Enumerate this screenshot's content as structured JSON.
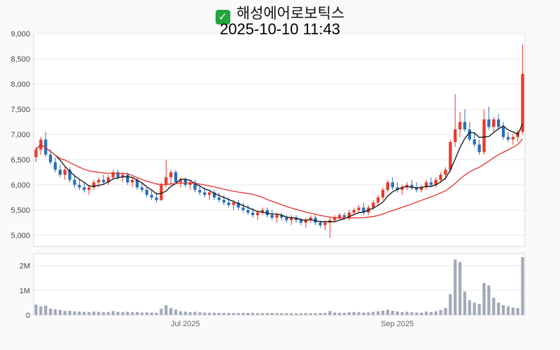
{
  "header": {
    "check_icon": "✓",
    "title": "해성에어로보틱스",
    "subtitle": "2025-10-10 11:43"
  },
  "colors": {
    "up": "#e8392c",
    "down": "#2b6fb8",
    "ma_fast": "#111111",
    "ma_slow": "#e0332c",
    "volume": "#a2aab8",
    "grid": "#e8e8e8",
    "border": "#d9d9d9",
    "axis_text": "#444444",
    "axis_muted": "#666666",
    "plot_bg": "#ffffff",
    "page_bg": "#fafafa",
    "check_bg": "#21a63e",
    "check_fg": "#ffffff"
  },
  "chart_data": {
    "type": "candlestick",
    "title": "해성에어로보틱스",
    "subtitle": "2025-10-10 11:43",
    "legend_position": "none",
    "grid": "horizontal",
    "y_axis": {
      "top_value": 9000,
      "bottom_value": 4780,
      "ticks": [
        {
          "v": 9000,
          "label": "9,000"
        },
        {
          "v": 8500,
          "label": "8,500"
        },
        {
          "v": 8000,
          "label": "8,000"
        },
        {
          "v": 7500,
          "label": "7,500"
        },
        {
          "v": 7000,
          "label": "7,000"
        },
        {
          "v": 6500,
          "label": "6,500"
        },
        {
          "v": 6000,
          "label": "6,000"
        },
        {
          "v": 5500,
          "label": "5,500"
        },
        {
          "v": 5000,
          "label": "5,000"
        }
      ]
    },
    "volume_axis": {
      "max": 2500000,
      "ticks": [
        {
          "v": 2000000,
          "label": "2M"
        },
        {
          "v": 1000000,
          "label": "1M"
        },
        {
          "v": 0,
          "label": "0"
        }
      ]
    },
    "x_axis": {
      "labels": [
        {
          "text": "Jul 2025",
          "date": "07-01"
        },
        {
          "text": "Sep 2025",
          "date": "09-01"
        }
      ]
    },
    "overlays": [
      {
        "name": "ma-fast",
        "window": 5,
        "color": "#111111"
      },
      {
        "name": "ma-slow",
        "window": 20,
        "color": "#e0332c"
      }
    ],
    "ohlc_columns": [
      "date",
      "open",
      "high",
      "low",
      "close",
      "volume"
    ],
    "ohlc": [
      [
        "05-19",
        6550,
        6750,
        6450,
        6700,
        420000
      ],
      [
        "05-20",
        6700,
        6950,
        6600,
        6900,
        350000
      ],
      [
        "05-21",
        6900,
        7050,
        6550,
        6600,
        380000
      ],
      [
        "05-22",
        6600,
        6700,
        6400,
        6450,
        260000
      ],
      [
        "05-23",
        6450,
        6550,
        6250,
        6300,
        230000
      ],
      [
        "05-26",
        6300,
        6400,
        6150,
        6200,
        200000
      ],
      [
        "05-27",
        6200,
        6350,
        6100,
        6300,
        160000
      ],
      [
        "05-28",
        6300,
        6350,
        6050,
        6100,
        170000
      ],
      [
        "05-29",
        6100,
        6200,
        5950,
        6000,
        150000
      ],
      [
        "05-30",
        6000,
        6100,
        5900,
        5950,
        140000
      ],
      [
        "06-02",
        5950,
        6050,
        5850,
        5900,
        130000
      ],
      [
        "06-03",
        5900,
        6000,
        5800,
        5950,
        120000
      ],
      [
        "06-04",
        5950,
        6100,
        5900,
        6050,
        140000
      ],
      [
        "06-05",
        6050,
        6150,
        5950,
        6100,
        130000
      ],
      [
        "06-06",
        6100,
        6200,
        6000,
        6050,
        110000
      ],
      [
        "06-09",
        6050,
        6200,
        6000,
        6150,
        120000
      ],
      [
        "06-10",
        6150,
        6300,
        6100,
        6250,
        160000
      ],
      [
        "06-11",
        6250,
        6300,
        6100,
        6150,
        130000
      ],
      [
        "06-12",
        6150,
        6250,
        6050,
        6200,
        120000
      ],
      [
        "06-13",
        6200,
        6250,
        6000,
        6050,
        130000
      ],
      [
        "06-16",
        6050,
        6150,
        5950,
        6100,
        110000
      ],
      [
        "06-17",
        6100,
        6150,
        5900,
        5950,
        120000
      ],
      [
        "06-18",
        5950,
        6050,
        5850,
        5900,
        100000
      ],
      [
        "06-19",
        5900,
        5950,
        5750,
        5800,
        110000
      ],
      [
        "06-20",
        5800,
        5900,
        5700,
        5750,
        100000
      ],
      [
        "06-23",
        5750,
        5850,
        5650,
        5700,
        95000
      ],
      [
        "06-24",
        5700,
        6050,
        5680,
        6000,
        250000
      ],
      [
        "06-25",
        6000,
        6500,
        5950,
        6150,
        400000
      ],
      [
        "06-26",
        6150,
        6300,
        6000,
        6250,
        280000
      ],
      [
        "06-27",
        6250,
        6300,
        6000,
        6050,
        220000
      ],
      [
        "06-30",
        6050,
        6150,
        5950,
        6100,
        150000
      ],
      [
        "07-01",
        6100,
        6150,
        5950,
        6000,
        140000
      ],
      [
        "07-02",
        6000,
        6100,
        5900,
        6050,
        120000
      ],
      [
        "07-03",
        6050,
        6100,
        5850,
        5900,
        130000
      ],
      [
        "07-04",
        5900,
        6000,
        5800,
        5850,
        110000
      ],
      [
        "07-07",
        5850,
        5950,
        5750,
        5800,
        100000
      ],
      [
        "07-08",
        5800,
        5900,
        5700,
        5850,
        95000
      ],
      [
        "07-09",
        5850,
        5900,
        5700,
        5750,
        90000
      ],
      [
        "07-10",
        5750,
        5850,
        5650,
        5700,
        85000
      ],
      [
        "07-11",
        5700,
        5800,
        5600,
        5650,
        90000
      ],
      [
        "07-14",
        5650,
        5750,
        5550,
        5600,
        85000
      ],
      [
        "07-15",
        5600,
        5700,
        5500,
        5650,
        80000
      ],
      [
        "07-16",
        5650,
        5700,
        5500,
        5550,
        85000
      ],
      [
        "07-17",
        5550,
        5650,
        5450,
        5500,
        90000
      ],
      [
        "07-18",
        5500,
        5600,
        5400,
        5450,
        85000
      ],
      [
        "07-21",
        5450,
        5550,
        5350,
        5400,
        90000
      ],
      [
        "07-22",
        5400,
        5500,
        5300,
        5450,
        80000
      ],
      [
        "07-23",
        5450,
        5550,
        5400,
        5500,
        75000
      ],
      [
        "07-24",
        5500,
        5550,
        5350,
        5400,
        80000
      ],
      [
        "07-25",
        5400,
        5500,
        5300,
        5350,
        85000
      ],
      [
        "07-28",
        5350,
        5450,
        5250,
        5400,
        75000
      ],
      [
        "07-29",
        5400,
        5450,
        5300,
        5350,
        70000
      ],
      [
        "07-30",
        5350,
        5400,
        5250,
        5300,
        75000
      ],
      [
        "07-31",
        5300,
        5400,
        5200,
        5350,
        70000
      ],
      [
        "08-01",
        5350,
        5400,
        5250,
        5300,
        65000
      ],
      [
        "08-04",
        5300,
        5350,
        5200,
        5250,
        70000
      ],
      [
        "08-05",
        5250,
        5350,
        5150,
        5300,
        75000
      ],
      [
        "08-06",
        5300,
        5400,
        5250,
        5350,
        70000
      ],
      [
        "08-07",
        5350,
        5400,
        5200,
        5250,
        75000
      ],
      [
        "08-08",
        5250,
        5300,
        5150,
        5200,
        80000
      ],
      [
        "08-11",
        5200,
        5300,
        5100,
        5250,
        90000
      ],
      [
        "08-12",
        5250,
        5350,
        4950,
        5300,
        160000
      ],
      [
        "08-13",
        5300,
        5400,
        5250,
        5350,
        100000
      ],
      [
        "08-14",
        5350,
        5450,
        5300,
        5400,
        90000
      ],
      [
        "08-15",
        5400,
        5450,
        5300,
        5350,
        85000
      ],
      [
        "08-18",
        5350,
        5500,
        5300,
        5450,
        110000
      ],
      [
        "08-19",
        5450,
        5550,
        5400,
        5500,
        120000
      ],
      [
        "08-20",
        5500,
        5600,
        5450,
        5550,
        110000
      ],
      [
        "08-21",
        5550,
        5650,
        5400,
        5450,
        100000
      ],
      [
        "08-22",
        5450,
        5600,
        5400,
        5550,
        105000
      ],
      [
        "08-25",
        5550,
        5700,
        5500,
        5650,
        130000
      ],
      [
        "08-26",
        5650,
        5800,
        5600,
        5750,
        150000
      ],
      [
        "08-27",
        5750,
        5950,
        5700,
        5900,
        180000
      ],
      [
        "08-28",
        5900,
        6100,
        5850,
        6050,
        220000
      ],
      [
        "08-29",
        6050,
        6150,
        5900,
        5950,
        170000
      ],
      [
        "09-01",
        5950,
        6050,
        5850,
        5900,
        140000
      ],
      [
        "09-02",
        5900,
        6000,
        5800,
        5950,
        120000
      ],
      [
        "09-03",
        5950,
        6050,
        5900,
        6000,
        130000
      ],
      [
        "09-04",
        6000,
        6100,
        5900,
        5950,
        110000
      ],
      [
        "09-05",
        5950,
        6050,
        5850,
        5900,
        100000
      ],
      [
        "09-08",
        5900,
        6000,
        5850,
        5950,
        95000
      ],
      [
        "09-09",
        5950,
        6100,
        5900,
        6050,
        140000
      ],
      [
        "09-10",
        6050,
        6150,
        5950,
        6000,
        120000
      ],
      [
        "09-11",
        6000,
        6150,
        5950,
        6100,
        150000
      ],
      [
        "09-12",
        6100,
        6250,
        6050,
        6200,
        200000
      ],
      [
        "09-15",
        6200,
        6350,
        6100,
        6300,
        280000
      ],
      [
        "09-16",
        6300,
        6900,
        6250,
        6850,
        850000
      ],
      [
        "09-17",
        6850,
        7800,
        6750,
        7100,
        2250000
      ],
      [
        "09-18",
        7100,
        7450,
        6950,
        7250,
        2150000
      ],
      [
        "09-19",
        7250,
        7500,
        7050,
        7100,
        950000
      ],
      [
        "09-22",
        7100,
        7250,
        6850,
        6900,
        600000
      ],
      [
        "09-23",
        6900,
        7050,
        6750,
        6800,
        500000
      ],
      [
        "09-24",
        6800,
        6900,
        6600,
        6650,
        450000
      ],
      [
        "09-25",
        6650,
        7500,
        6600,
        7300,
        1300000
      ],
      [
        "09-26",
        7300,
        7550,
        7100,
        7150,
        1200000
      ],
      [
        "09-29",
        7150,
        7350,
        7050,
        7300,
        700000
      ],
      [
        "09-30",
        7300,
        7400,
        7100,
        7150,
        500000
      ],
      [
        "10-01",
        7150,
        7250,
        6900,
        6950,
        400000
      ],
      [
        "10-02",
        6950,
        7050,
        6850,
        6900,
        350000
      ],
      [
        "10-07",
        6900,
        7000,
        6800,
        6950,
        300000
      ],
      [
        "10-08",
        6950,
        7100,
        6850,
        7050,
        280000
      ],
      [
        "10-10",
        7050,
        8780,
        7000,
        8200,
        2350000
      ]
    ]
  }
}
